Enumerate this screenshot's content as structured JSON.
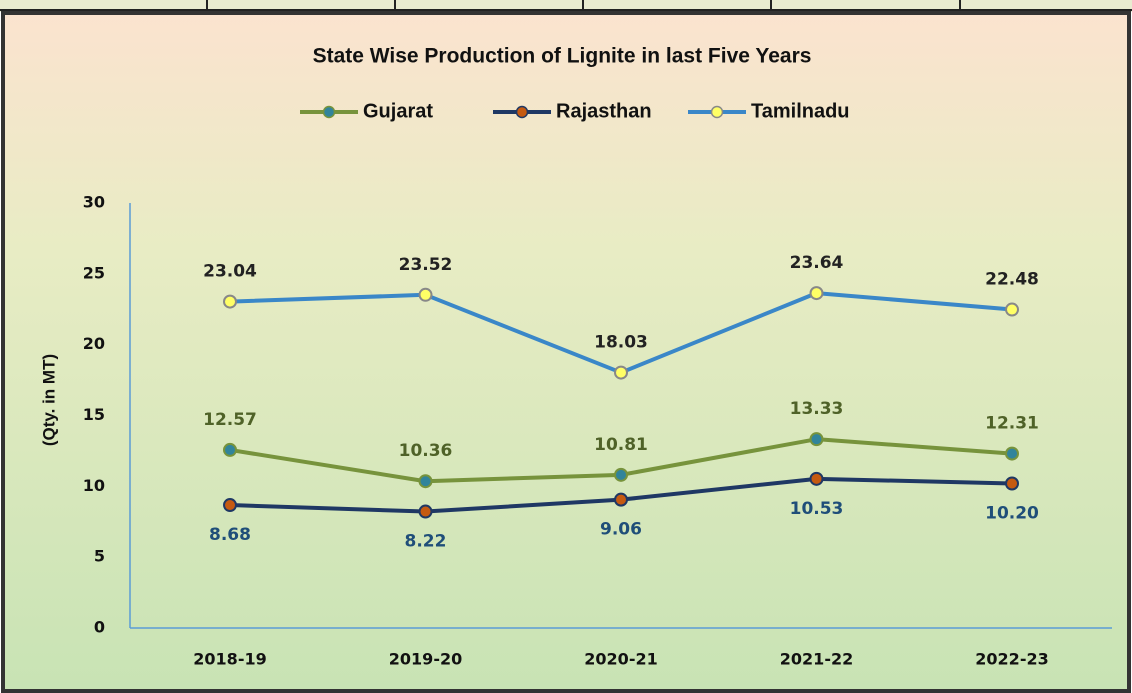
{
  "chart_data": {
    "type": "line",
    "title": "State Wise Production of Lignite in last Five Years",
    "y_label": "(Qty. in MT)",
    "categories": [
      "2018-19",
      "2019-20",
      "2020-21",
      "2021-22",
      "2022-23"
    ],
    "series": [
      {
        "name": "Gujarat",
        "color": "#77933c",
        "marker_color": "#31849b",
        "marker_edge": "#77933c",
        "label_color": "#4f6228",
        "label_position": "above",
        "values": [
          12.57,
          10.36,
          10.81,
          13.33,
          12.31
        ]
      },
      {
        "name": "Rajasthan",
        "color": "#1f3864",
        "marker_color": "#c55a11",
        "marker_edge": "#1f3864",
        "label_color": "#1f4e79",
        "label_position": "below",
        "values": [
          8.68,
          8.22,
          9.06,
          10.53,
          10.2
        ],
        "value_labels": [
          "8.68",
          "8.22",
          "9.06",
          "10.53",
          "10.20"
        ]
      },
      {
        "name": "Tamilnadu",
        "color": "#3a87c8",
        "marker_color": "#ffff66",
        "marker_edge": "#888888",
        "label_color": "#222222",
        "label_position": "above",
        "values": [
          23.04,
          23.52,
          18.03,
          23.64,
          22.48
        ]
      }
    ],
    "ylim": [
      0,
      30
    ],
    "yticks": [
      0,
      5,
      10,
      15,
      20,
      25,
      30
    ],
    "grid": false,
    "legend": "top"
  }
}
